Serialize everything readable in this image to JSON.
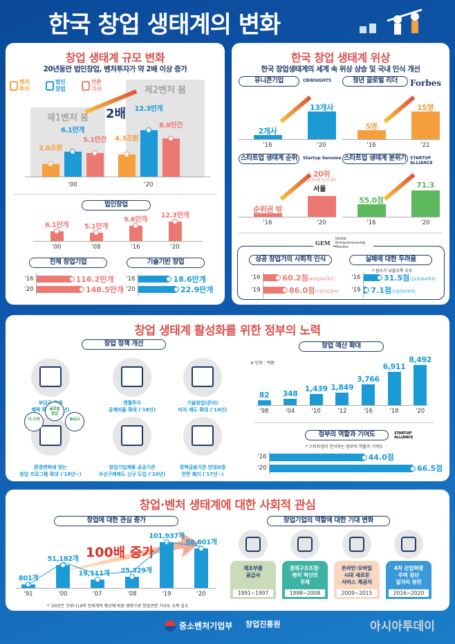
{
  "title": "한국 창업 생태계의 변화",
  "colors": {
    "orange": "#f5a03c",
    "blue": "#1b9ad6",
    "red": "#ec7872",
    "green": "#5bb85d",
    "navy": "#1b3a6b",
    "title_red": "#d9534f"
  },
  "scale": {
    "title": "창업 생태계 규모 변화",
    "subtitle": "20년동안 법인창업, 벤처투자가 약 2배 이상 증가",
    "legend": [
      {
        "label": "벤처\n투자",
        "icon": "money-stack-icon"
      },
      {
        "label": "법인\n창업",
        "icon": "building-icon"
      },
      {
        "label": "언론\n기사",
        "icon": "pen-icon"
      }
    ],
    "booms": [
      "제1벤처 붐",
      "제2벤처 붐"
    ],
    "double_label": "2배",
    "groups": [
      {
        "year": "'00",
        "values": [
          {
            "label": "2.0조원",
            "v": 2.0
          },
          {
            "label": "6.1만개",
            "v": 6.1
          },
          {
            "label": "5.1만건",
            "v": 5.1
          }
        ]
      },
      {
        "year": "'20",
        "values": [
          {
            "label": "4.3조원",
            "v": 4.3
          },
          {
            "label": "12.3만개",
            "v": 12.3
          },
          {
            "label": "8.9만건",
            "v": 8.9
          }
        ]
      }
    ],
    "corp": {
      "title": "법인창업",
      "items": [
        {
          "year": "'00",
          "label": "6.1만개",
          "v": 6.1
        },
        {
          "year": "'08",
          "label": "5.1만개",
          "v": 5.1
        },
        {
          "year": "'16",
          "label": "9.6만개",
          "v": 9.6
        },
        {
          "year": "'20",
          "label": "12.3만개",
          "v": 12.3
        }
      ]
    },
    "total": {
      "title": "전체 창업기업",
      "items": [
        {
          "year": "'16",
          "label": "116.2만개",
          "v": 116.2
        },
        {
          "year": "'20",
          "label": "148.5만개",
          "v": 148.5
        }
      ]
    },
    "tech": {
      "title": "기술기반 창업",
      "items": [
        {
          "year": "'16",
          "label": "18.6만개",
          "v": 18.6
        },
        {
          "year": "'20",
          "label": "22.9만개",
          "v": 22.9
        }
      ]
    }
  },
  "status": {
    "title": "한국 창업 생태계 위상",
    "subtitle": "한국 창업생태계의 세계 속 위상 상승 및 국내 인식 개선",
    "panels": [
      {
        "title": "유니콘기업",
        "source": "CBINSIGHTS",
        "color": "#1b9ad6",
        "items": [
          {
            "year": "'16",
            "label": "2개사",
            "v": 2
          },
          {
            "year": "'20",
            "label": "13개사",
            "v": 13
          }
        ]
      },
      {
        "title": "청년 글로벌 리더",
        "source": "Forbes",
        "color": "#f5a03c",
        "items": [
          {
            "year": "'16",
            "label": "5명",
            "v": 5
          },
          {
            "year": "'21",
            "label": "15명",
            "v": 15
          }
        ]
      },
      {
        "title": "스타트업 생태계 순위",
        "source": "Startup Genome",
        "color": "#ec7872",
        "items": [
          {
            "year": "'16",
            "label": "순위권 밖",
            "v": 1
          },
          {
            "year": "'20",
            "label": "20위",
            "v": 6
          }
        ],
        "extra": "(270개 도시 中)",
        "city": "서울"
      },
      {
        "title": "스타트업 생태계 분위기",
        "source": "STARTUP ALLIANCE",
        "color": "#5bb85d",
        "items": [
          {
            "year": "'16",
            "label": "55.0점",
            "v": 55
          },
          {
            "year": "'20",
            "label": "71.3점",
            "v": 71.3
          }
        ]
      }
    ],
    "gem": {
      "logo": "GEM",
      "name": "Global Entrepreneurship Monitor",
      "recognition": {
        "title": "성공 창업가의 사회적 인식",
        "items": [
          {
            "year": "'16",
            "label": "60.2점",
            "rank": "(46위/64개국)",
            "v": 60.2
          },
          {
            "year": "'19",
            "label": "86.0점",
            "rank": "(7위/50개국)",
            "v": 86.0
          }
        ]
      },
      "fear": {
        "title": "실패에 대한 두려움",
        "note": "* 점수가 낮을수록 우수",
        "items": [
          {
            "year": "'16",
            "label": "31.5점",
            "rank": "(22위/64개국)",
            "v": 31.5
          },
          {
            "year": "'19",
            "label": "7.1점",
            "rank": "(1위/50개국)",
            "v": 7.1
          }
        ]
      }
    }
  },
  "gov": {
    "title": "창업 생태계 활성화를 위한 정부의 노력",
    "policy_title": "창업 정책 개선",
    "policies": [
      {
        "icon": "money-bag-person-icon",
        "text": "부담금 면제\n혜택 확대 ('18년)"
      },
      {
        "icon": "card-cash-icon",
        "text": "엔젤투자\n공제비율 확대 ('18년)"
      },
      {
        "icon": "calculator-icon",
        "text": "기술창업(준비)\n비자 제도 확대 ('14년)"
      },
      {
        "icon": "program-bubbles-icon",
        "text": "환경변화에 맞는\n창업 프로그램 확대 ('18년~)",
        "bubbles": [
          "글로벌\n창업",
          "디·스타",
          "BIG3"
        ]
      },
      {
        "icon": "public-institution-icon",
        "text": "창업기업제품 공공기관\n우선구매제도 신규 도입 ('20년)"
      },
      {
        "icon": "broken-chain-icon",
        "text": "정책금융기관 연대보증\n전면 폐지 ('17년~)"
      }
    ],
    "budget": {
      "title": "창업 예산 확대",
      "unit": "※ 단위 : 억원",
      "items": [
        {
          "year": "'98",
          "label": "82",
          "v": 82
        },
        {
          "year": "'04",
          "label": "348",
          "v": 348
        },
        {
          "year": "'10",
          "label": "1,439",
          "v": 1439
        },
        {
          "year": "'12",
          "label": "1,849",
          "v": 1849
        },
        {
          "year": "'16",
          "label": "3,766",
          "v": 3766
        },
        {
          "year": "'18",
          "label": "6,911",
          "v": 6911
        },
        {
          "year": "'20",
          "label": "8,492",
          "v": 8492
        }
      ]
    },
    "role": {
      "title": "정부의 역할과 기여도",
      "source": "STARTUP ALLIANCE",
      "note": "* 스타트업이 인식하는 정부의 역할과 기여도",
      "items": [
        {
          "year": "'16",
          "label": "44.0점",
          "v": 44.0
        },
        {
          "year": "'20",
          "label": "66.5점",
          "v": 66.5
        }
      ]
    }
  },
  "social": {
    "title": "창업·벤처 생태계에 대한 사회적 관심",
    "interest": {
      "title": "창업에 대한 관심 증가",
      "growth": "100배 증가",
      "note": "* '20년은 코로나19의 전세계적 확산에 따른 영향으로 창업관련 기사도 소폭 감소",
      "items": [
        {
          "year": "'91",
          "label": "801개",
          "v": 801
        },
        {
          "year": "'00",
          "label": "51,182개",
          "v": 51182
        },
        {
          "year": "'07",
          "label": "19,111개",
          "v": 19111
        },
        {
          "year": "'08",
          "label": "25,329개",
          "v": 25329
        },
        {
          "year": "'19",
          "label": "101,937개",
          "v": 101937
        },
        {
          "year": "'20",
          "label": "88,601개",
          "v": 88601
        }
      ]
    },
    "expect": {
      "title": "창업기업의 역할에 대한 기대 변화",
      "items": [
        {
          "icon": "tools-icon",
          "text": "제조부품\n공급사",
          "period": "1991~1997",
          "bg": "#c9dbb8",
          "fg": "#1b3a6b"
        },
        {
          "icon": "people-idea-icon",
          "text": "경제구조조정·\n벤처 혁신의\n주체",
          "period": "1998~2008",
          "bg": "#3db3a4",
          "fg": "#ffffff"
        },
        {
          "icon": "mobile-service-icon",
          "text": "온라인·모바일\n시대 새로운\n서비스 제공자",
          "period": "2009~2015",
          "bg": "#f9d8c2",
          "fg": "#1b3a6b"
        },
        {
          "icon": "heads-icon",
          "text": "4차 산업혁명\n주역 청년\n일자리 원천",
          "period": "2016~2020",
          "bg": "#3a9ad9",
          "fg": "#ffffff"
        }
      ]
    }
  },
  "footer": {
    "ministry": "중소벤처기업부",
    "agency": "창업진흥원",
    "press": "아시아투데이"
  }
}
